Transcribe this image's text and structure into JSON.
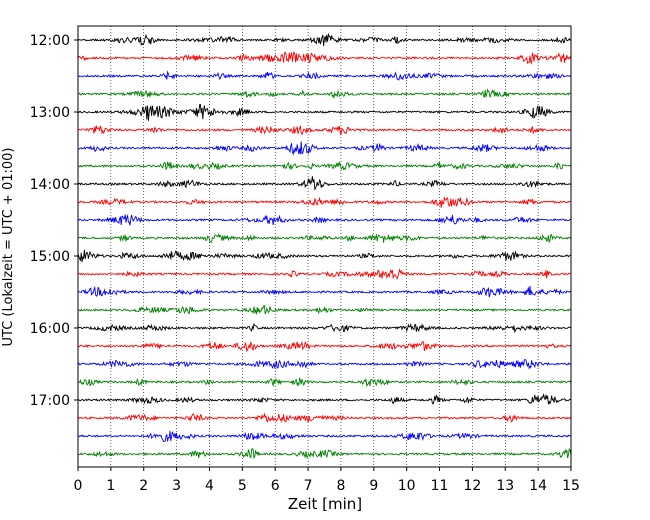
{
  "chart_data": {
    "type": "line",
    "title": "",
    "xlabel": "Zeit  [min]",
    "ylabel": "UTC (Lokalzeit = UTC + 01:00)",
    "xlim": [
      0,
      15
    ],
    "x_ticks": [
      "0",
      "1",
      "2",
      "3",
      "4",
      "5",
      "6",
      "7",
      "8",
      "9",
      "10",
      "11",
      "12",
      "13",
      "14",
      "15"
    ],
    "y_ticks": [
      "12:00",
      "13:00",
      "14:00",
      "15:00",
      "16:00",
      "17:00"
    ],
    "y_start": "12:00",
    "trace_interval_minutes": 15,
    "trace_count": 24,
    "trace_colors": [
      "#000000",
      "#ff0000",
      "#0000ff",
      "#008000"
    ],
    "grid": "vertical-dotted"
  }
}
